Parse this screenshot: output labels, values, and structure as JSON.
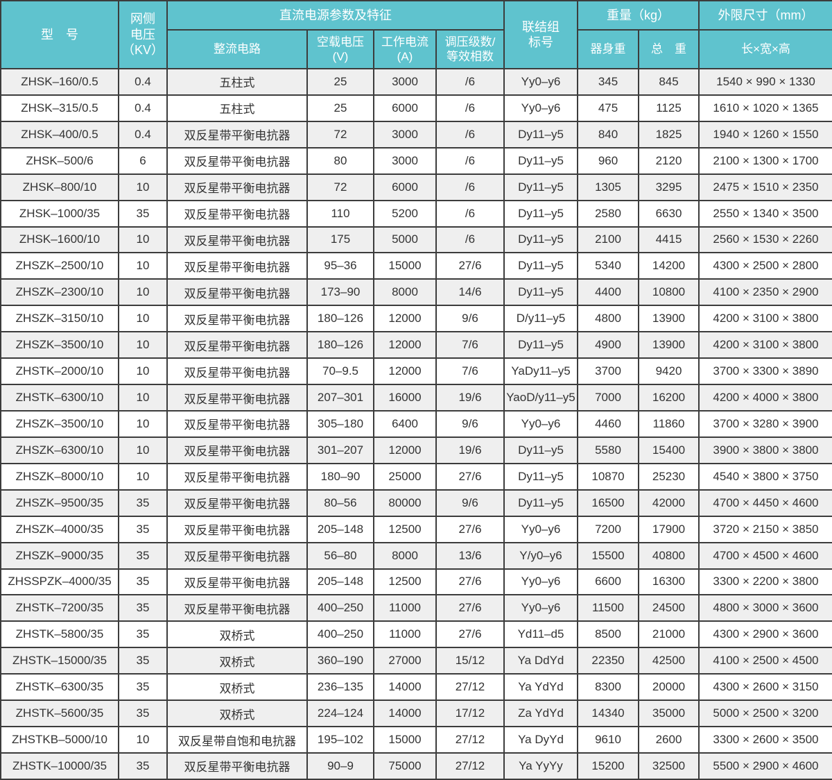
{
  "colors": {
    "header_bg": "#5fc3ce",
    "row_odd": "#efefef",
    "row_even": "#ffffff",
    "border": "#3c3c3c",
    "header_text": "#ffffff",
    "body_text": "#333333"
  },
  "table": {
    "header": {
      "col_model": "型　号",
      "col_grid_voltage": "网侧\n电压\n（KV）",
      "group_dc": "直流电源参数及特征",
      "col_rectifier": "整流电路",
      "col_no_load_voltage": "空载电压\n(V)",
      "col_working_current": "工作电流\n(A)",
      "col_regulation": "调压级数/\n等效相数",
      "col_connection": "联结组\n标号",
      "group_weight": "重量（kg）",
      "col_body_weight": "器身重",
      "col_total_weight": "总　重",
      "group_dimensions": "外限尺寸（mm）",
      "col_lwh": "长×宽×高"
    },
    "rows": [
      [
        "ZHSK–160/0.5",
        "0.4",
        "五柱式",
        "25",
        "3000",
        "/6",
        "Yy0–y6",
        "345",
        "845",
        "1540 × 990 × 1330"
      ],
      [
        "ZHSK–315/0.5",
        "0.4",
        "五柱式",
        "25",
        "6000",
        "/6",
        "Yy0–y6",
        "475",
        "1125",
        "1610 × 1020 × 1365"
      ],
      [
        "ZHSK–400/0.5",
        "0.4",
        "双反星带平衡电抗器",
        "72",
        "3000",
        "/6",
        "Dy11–y5",
        "840",
        "1825",
        "1940 × 1260 × 1550"
      ],
      [
        "ZHSK–500/6",
        "6",
        "双反星带平衡电抗器",
        "80",
        "3000",
        "/6",
        "Dy11–y5",
        "960",
        "2120",
        "2100 × 1300 × 1700"
      ],
      [
        "ZHSK–800/10",
        "10",
        "双反星带平衡电抗器",
        "72",
        "6000",
        "/6",
        "Dy11–y5",
        "1305",
        "3295",
        "2475 × 1510 × 2350"
      ],
      [
        "ZHSK–1000/35",
        "35",
        "双反星带平衡电抗器",
        "110",
        "5200",
        "/6",
        "Dy11–y5",
        "2580",
        "6630",
        "2550 × 1340 × 3500"
      ],
      [
        "ZHSK–1600/10",
        "10",
        "双反星带平衡电抗器",
        "175",
        "5000",
        "/6",
        "Dy11–y5",
        "2100",
        "4415",
        "2560 × 1530 × 2260"
      ],
      [
        "ZHSZK–2500/10",
        "10",
        "双反星带平衡电抗器",
        "95–36",
        "15000",
        "27/6",
        "Dy11–y5",
        "5340",
        "14200",
        "4300 × 2500 × 2800"
      ],
      [
        "ZHSZK–2300/10",
        "10",
        "双反星带平衡电抗器",
        "173–90",
        "8000",
        "14/6",
        "Dy11–y5",
        "4400",
        "10800",
        "4100 × 2350 × 2900"
      ],
      [
        "ZHSZK–3150/10",
        "10",
        "双反星带平衡电抗器",
        "180–126",
        "12000",
        "9/6",
        "D/y11–y5",
        "4800",
        "13900",
        "4200 × 3100 × 3800"
      ],
      [
        "ZHSZK–3500/10",
        "10",
        "双反星带平衡电抗器",
        "180–126",
        "12000",
        "7/6",
        "Dy11–y5",
        "4900",
        "13900",
        "4200 × 3100 × 3800"
      ],
      [
        "ZHSTK–2000/10",
        "10",
        "双反星带平衡电抗器",
        "70–9.5",
        "12000",
        "7/6",
        "YaDy11–y5",
        "3700",
        "9420",
        "3700 × 3300 × 3890"
      ],
      [
        "ZHSTK–6300/10",
        "10",
        "双反星带平衡电抗器",
        "207–301",
        "16000",
        "19/6",
        "YaoD/y11–y5",
        "7000",
        "16200",
        "4200 × 4000 × 3800"
      ],
      [
        "ZHSZK–3500/10",
        "10",
        "双反星带平衡电抗器",
        "305–180",
        "6400",
        "9/6",
        "Yy0–y6",
        "4460",
        "11860",
        "3700 × 3280 × 3900"
      ],
      [
        "ZHSZK–6300/10",
        "10",
        "双反星带平衡电抗器",
        "301–207",
        "12000",
        "19/6",
        "Dy11–y5",
        "5580",
        "15400",
        "3900 × 3800 × 3800"
      ],
      [
        "ZHSZK–8000/10",
        "10",
        "双反星带平衡电抗器",
        "180–90",
        "25000",
        "27/6",
        "Dy11–y5",
        "10870",
        "25230",
        "4540 × 3800 × 3750"
      ],
      [
        "ZHSZK–9500/35",
        "35",
        "双反星带平衡电抗器",
        "80–56",
        "80000",
        "9/6",
        "Dy11–y5",
        "16500",
        "42000",
        "4700 × 4450 × 4600"
      ],
      [
        "ZHSZK–4000/35",
        "35",
        "双反星带平衡电抗器",
        "205–148",
        "12500",
        "27/6",
        "Yy0–y6",
        "7200",
        "17900",
        "3720 × 2150 × 3850"
      ],
      [
        "ZHSZK–9000/35",
        "35",
        "双反星带平衡电抗器",
        "56–80",
        "8000",
        "13/6",
        "Y/y0–y6",
        "15500",
        "40800",
        "4700 × 4500 × 4600"
      ],
      [
        "ZHSSPZK–4000/35",
        "35",
        "双反星带平衡电抗器",
        "205–148",
        "12500",
        "27/6",
        "Yy0–y6",
        "6600",
        "16300",
        "3300 × 2200 × 3800"
      ],
      [
        "ZHSTK–7200/35",
        "35",
        "双反星带平衡电抗器",
        "400–250",
        "11000",
        "27/6",
        "Yy0–y6",
        "11500",
        "24500",
        "4800 × 3000 × 3600"
      ],
      [
        "ZHSTK–5800/35",
        "35",
        "双桥式",
        "400–250",
        "11000",
        "27/6",
        "Yd11–d5",
        "8500",
        "21000",
        "4300 × 2900 × 3600"
      ],
      [
        "ZHSTK–15000/35",
        "35",
        "双桥式",
        "360–190",
        "27000",
        "15/12",
        "Ya DdYd",
        "22350",
        "42500",
        "4100 × 2500 × 4500"
      ],
      [
        "ZHSTK–6300/35",
        "35",
        "双桥式",
        "236–135",
        "14000",
        "27/12",
        "Ya YdYd",
        "8300",
        "20000",
        "4300 × 2600 × 3150"
      ],
      [
        "ZHSTK–5600/35",
        "35",
        "双桥式",
        "224–124",
        "14000",
        "17/12",
        "Za YdYd",
        "14340",
        "35000",
        "5000 × 2500 × 3200"
      ],
      [
        "ZHSTKB–5000/10",
        "10",
        "双反星带自饱和电抗器",
        "195–102",
        "15000",
        "27/12",
        "Ya DyYd",
        "9610",
        "2600",
        "3300 × 2600 × 3500"
      ],
      [
        "ZHSTK–10000/35",
        "35",
        "双反星带平衡电抗器",
        "90–9",
        "75000",
        "27/12",
        "Ya YyYy",
        "15200",
        "32500",
        "5500 × 2900 × 4600"
      ]
    ]
  }
}
